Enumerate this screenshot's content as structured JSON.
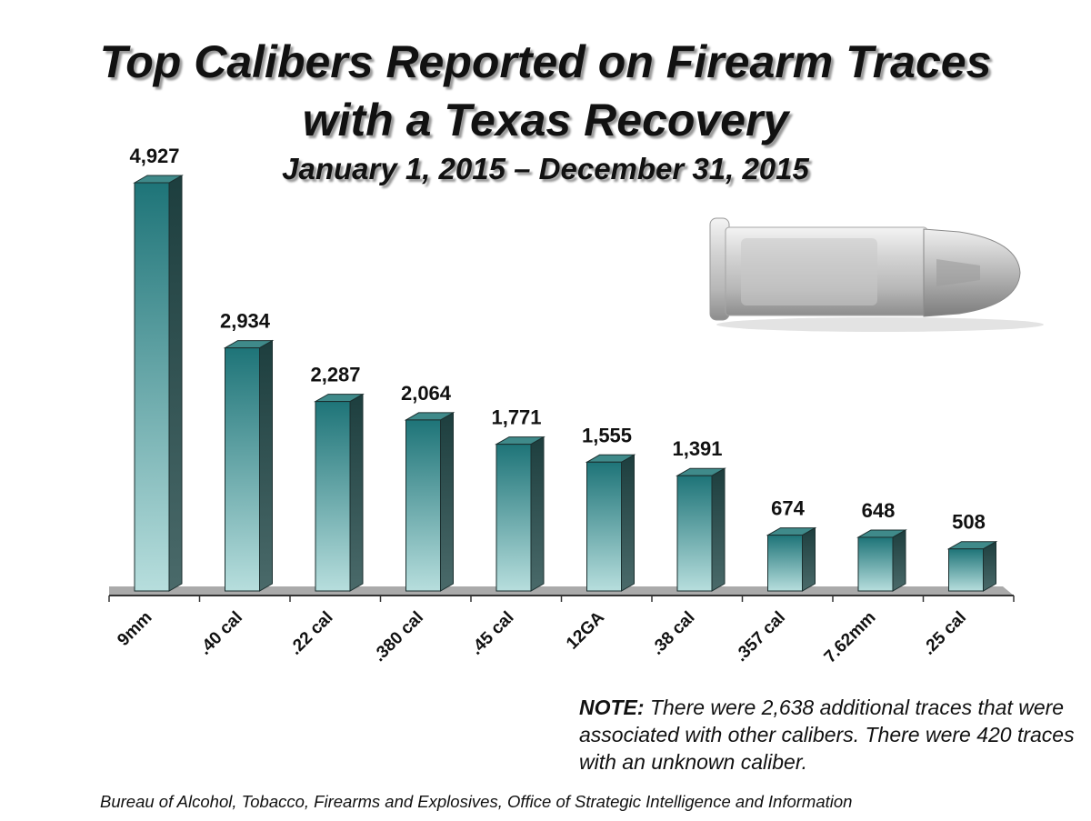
{
  "chart_data": {
    "type": "bar",
    "title": "Top Calibers Reported on Firearm Traces",
    "title_line2": "with a Texas Recovery",
    "subtitle": "January 1, 2015 – December 31, 2015",
    "categories": [
      "9mm",
      ".40 cal",
      ".22 cal",
      ".380 cal",
      ".45 cal",
      "12GA",
      ".38 cal",
      ".357 cal",
      "7.62mm",
      ".25 cal"
    ],
    "values": [
      4927,
      2934,
      2287,
      2064,
      1771,
      1555,
      1391,
      674,
      648,
      508
    ],
    "value_labels": [
      "4,927",
      "2,934",
      "2,287",
      "2,064",
      "1,771",
      "1,555",
      "1,391",
      "674",
      "648",
      "508"
    ],
    "ylim": [
      0,
      4927
    ],
    "grid": false,
    "legend": "none",
    "bar_style": "3d-gradient",
    "colors": {
      "bar_top": "#1e7478",
      "bar_bottom": "#b7dedd",
      "bar_side": "#244848",
      "bar_cap": "#3f8a8a"
    }
  },
  "note": {
    "label": "NOTE:",
    "text": " There were 2,638 additional traces that were associated with other calibers. There were 420 traces with an unknown caliber."
  },
  "source": "Bureau of Alcohol, Tobacco, Firearms and Explosives, Office of Strategic Intelligence and Information",
  "decoration": {
    "image": "bullet-cartridge-icon"
  }
}
